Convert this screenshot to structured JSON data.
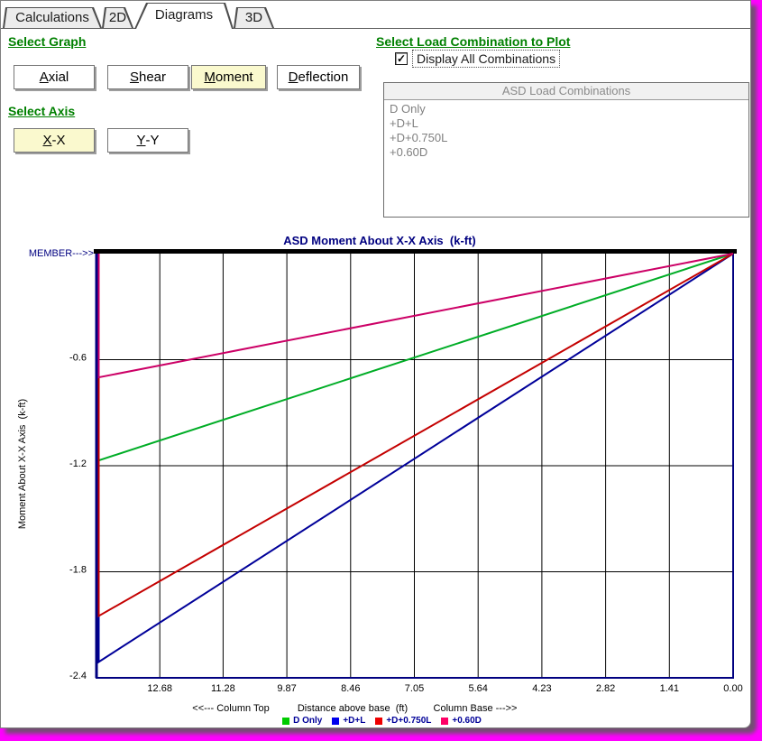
{
  "tabs": {
    "items": [
      {
        "label": "Calculations",
        "active": false
      },
      {
        "label": "2D",
        "active": false
      },
      {
        "label": "Diagrams",
        "active": true
      },
      {
        "label": "3D",
        "active": false
      }
    ]
  },
  "graph_section": {
    "heading": "Select Graph",
    "buttons": [
      {
        "label": "Axial",
        "accel": "A",
        "selected": false
      },
      {
        "label": "Shear",
        "accel": "S",
        "selected": false
      },
      {
        "label": "Moment",
        "accel": "M",
        "selected": true
      },
      {
        "label": "Deflection",
        "accel": "D",
        "selected": false
      }
    ]
  },
  "axis_section": {
    "heading": "Select Axis",
    "buttons": [
      {
        "label": "X-X",
        "accel": "X",
        "selected": true
      },
      {
        "label": "Y-Y",
        "accel": "Y",
        "selected": false
      }
    ]
  },
  "combo_section": {
    "heading": "Select Load Combination to Plot",
    "checkbox_label": "Display All Combinations",
    "checkbox_checked": true,
    "listbox_title": "ASD Load Combinations",
    "items": [
      "D Only",
      "+D+L",
      "+D+0.750L",
      "+0.60D"
    ]
  },
  "ui_colors": {
    "heading_green": "#008000",
    "selected_button_yellow": "#FAF9CE",
    "screen_background_magenta": "#FF00FF",
    "chart_title_navy": "#000080"
  },
  "chart_data": {
    "type": "line",
    "title": "ASD Moment About X-X Axis  (k-ft)",
    "ylabel": "Moment About X-X Axis  (k-ft)",
    "xlabel": "Distance above base  (ft)",
    "xlabel_left": "<<--- Column Top",
    "xlabel_right": "Column Base --->>",
    "member_label": "MEMBER--->>",
    "x_axis_reversed": true,
    "xlim": [
      14.1,
      0
    ],
    "ylim": [
      0,
      -2.4
    ],
    "x_ticks": [
      "12.68",
      "11.28",
      "9.87",
      "8.46",
      "7.05",
      "5.64",
      "4.23",
      "2.82",
      "1.41",
      "0.00"
    ],
    "y_ticks": [
      "-0.6",
      "-1.2",
      "-1.8",
      "-2.4"
    ],
    "grid": true,
    "legend_position": "bottom",
    "series": [
      {
        "name": "D Only",
        "color": "#00AD26",
        "swatch": "#00CC00",
        "x": [
          14.1,
          14.1,
          0
        ],
        "y": [
          0,
          -1.17,
          0
        ]
      },
      {
        "name": "+D+L",
        "color": "#000099",
        "swatch": "#0000EE",
        "x": [
          14.1,
          14.1,
          0
        ],
        "y": [
          0,
          -2.31,
          0
        ]
      },
      {
        "name": "+D+0.750L",
        "color": "#C40000",
        "swatch": "#EE0000",
        "x": [
          14.1,
          14.1,
          0
        ],
        "y": [
          0,
          -2.05,
          0
        ]
      },
      {
        "name": "+0.60D",
        "color": "#CC0066",
        "swatch": "#FF0066",
        "x": [
          14.1,
          14.1,
          0
        ],
        "y": [
          0,
          -0.7,
          0
        ]
      }
    ]
  }
}
